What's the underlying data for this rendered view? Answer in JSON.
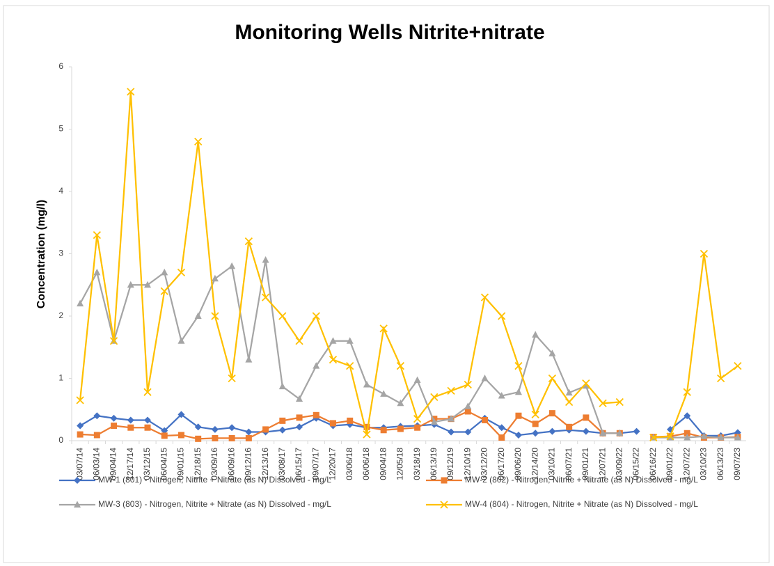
{
  "chart_data": {
    "type": "line",
    "title": "Monitoring Wells Nitrite+nitrate",
    "y_label": "Concentration (mg/l)",
    "categories": [
      "03/07/14",
      "06/03/14",
      "09/04/14",
      "12/17/14",
      "03/12/15",
      "06/04/15",
      "09/01/15",
      "12/18/15",
      "03/09/16",
      "06/09/16",
      "09/12/16",
      "12/13/16",
      "03/08/17",
      "06/15/17",
      "09/07/17",
      "12/20/17",
      "03/06/18",
      "06/06/18",
      "09/04/18",
      "12/05/18",
      "03/18/19",
      "06/13/19",
      "09/12/19",
      "12/10/19",
      "03/12/20",
      "06/17/20",
      "09/06/20",
      "12/14/20",
      "03/10/21",
      "06/07/21",
      "09/01/21",
      "12/07/21",
      "03/09/22",
      "06/15/22",
      "06/16/22",
      "09/01/22",
      "12/07/22",
      "03/10/23",
      "06/13/23",
      "09/07/23"
    ],
    "series": [
      {
        "name": "MW-1 (801) - Nitrogen, Nitrite + Nitrate (as N) Dissolved - mg/L",
        "color": "#4472c4",
        "marker": "diamond",
        "values": [
          0.24,
          0.4,
          0.36,
          0.33,
          0.33,
          0.16,
          0.42,
          0.22,
          0.18,
          0.21,
          0.14,
          0.14,
          0.17,
          0.22,
          0.36,
          0.24,
          0.26,
          0.21,
          0.21,
          0.23,
          0.24,
          0.26,
          0.14,
          0.14,
          0.36,
          0.21,
          0.09,
          0.12,
          0.15,
          0.17,
          0.15,
          0.12,
          0.12,
          0.15,
          null,
          0.18,
          0.4,
          0.08,
          0.08,
          0.13
        ]
      },
      {
        "name": "MW-2 (802) - Nitrogen, Nitrite + Nitrate (as N) Dissolved - mg/L",
        "color": "#ed7d31",
        "marker": "square",
        "values": [
          0.1,
          0.09,
          0.24,
          0.21,
          0.21,
          0.08,
          0.09,
          0.03,
          0.04,
          0.04,
          0.04,
          0.18,
          0.32,
          0.37,
          0.41,
          0.28,
          0.32,
          0.22,
          0.17,
          0.19,
          0.21,
          0.35,
          0.35,
          0.47,
          0.33,
          0.05,
          0.4,
          0.27,
          0.44,
          0.22,
          0.37,
          0.12,
          0.12,
          null,
          0.06,
          0.07,
          0.12,
          0.05,
          0.05,
          0.06
        ]
      },
      {
        "name": "MW-3 (803) - Nitrogen, Nitrite + Nitrate (as N) Dissolved - mg/L",
        "color": "#a5a5a5",
        "marker": "triangle",
        "values": [
          2.2,
          2.7,
          1.6,
          2.5,
          2.5,
          2.7,
          1.6,
          2.0,
          2.6,
          2.8,
          1.3,
          2.9,
          0.87,
          0.67,
          1.2,
          1.6,
          1.6,
          0.9,
          0.75,
          0.6,
          0.97,
          0.3,
          0.35,
          0.55,
          1.0,
          0.72,
          0.78,
          1.7,
          1.4,
          0.77,
          0.88,
          0.12,
          0.12,
          null,
          0.05,
          0.05,
          0.05,
          0.07,
          0.05,
          0.05
        ]
      },
      {
        "name": "MW-4 (804) - Nitrogen, Nitrite + Nitrate (as N) Dissolved - mg/L",
        "color": "#ffc000",
        "marker": "x",
        "values": [
          0.65,
          3.3,
          1.6,
          5.6,
          0.78,
          2.4,
          2.7,
          4.8,
          2.0,
          1.0,
          3.2,
          2.3,
          2.0,
          1.6,
          2.0,
          1.3,
          1.2,
          0.1,
          1.8,
          1.2,
          0.35,
          0.7,
          0.8,
          0.9,
          2.3,
          2.0,
          1.2,
          0.42,
          1.0,
          0.62,
          0.92,
          0.6,
          0.62,
          null,
          0.05,
          0.07,
          0.78,
          3.0,
          1.0,
          1.2
        ]
      }
    ],
    "ylim": [
      0,
      6
    ],
    "yticks": [
      0,
      1,
      2,
      3,
      4,
      5,
      6
    ],
    "grid": false,
    "legend": "bottom"
  }
}
